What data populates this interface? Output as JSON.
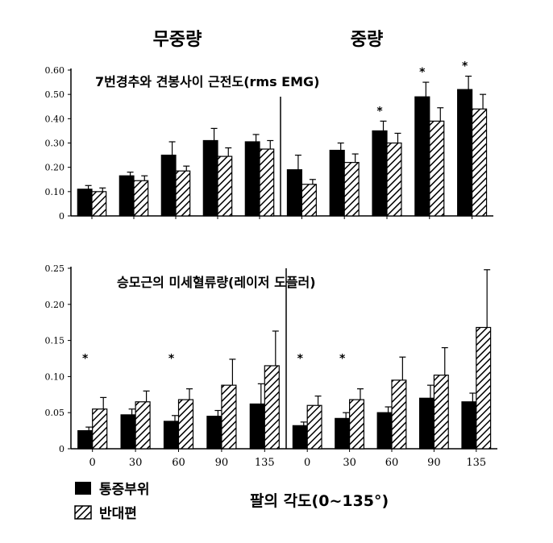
{
  "column_titles": [
    "무중량",
    "중량"
  ],
  "legend": [
    {
      "label": "통증부위",
      "fill": "solid"
    },
    {
      "label": "반대편",
      "fill": "hatch"
    }
  ],
  "xlabel": "팔의 각도(0~135°)",
  "colors": {
    "solid": "#000000",
    "hatch_bg": "#ffffff",
    "line": "#000000"
  },
  "chart_data": [
    {
      "type": "bar",
      "title": "7번경추와 견봉사이 근전도(rms EMG)",
      "categories": [
        "0",
        "30",
        "60",
        "90",
        "135"
      ],
      "ylim": [
        0,
        0.6
      ],
      "yticks": [
        "0",
        "0.10",
        "0.20",
        "0.30",
        "0.40",
        "0.50",
        "0.60"
      ],
      "show_x_tick_labels": false,
      "panels": [
        {
          "name": "무중량",
          "series": [
            {
              "name": "통증부위",
              "values": [
                0.11,
                0.165,
                0.25,
                0.31,
                0.305
              ],
              "errors": [
                0.015,
                0.015,
                0.055,
                0.05,
                0.03
              ]
            },
            {
              "name": "반대편",
              "values": [
                0.1,
                0.145,
                0.185,
                0.245,
                0.275
              ],
              "errors": [
                0.015,
                0.02,
                0.02,
                0.035,
                0.035
              ]
            }
          ],
          "significant": [
            false,
            false,
            false,
            false,
            false
          ]
        },
        {
          "name": "중량",
          "series": [
            {
              "name": "통증부위",
              "values": [
                0.19,
                0.27,
                0.35,
                0.49,
                0.52
              ],
              "errors": [
                0.06,
                0.03,
                0.04,
                0.06,
                0.055
              ]
            },
            {
              "name": "반대편",
              "values": [
                0.13,
                0.22,
                0.3,
                0.39,
                0.44
              ],
              "errors": [
                0.02,
                0.035,
                0.04,
                0.055,
                0.06
              ]
            }
          ],
          "significant": [
            false,
            false,
            true,
            true,
            true
          ]
        }
      ]
    },
    {
      "type": "bar",
      "title": "승모근의 미세혈류량(레이저 도플러)",
      "categories": [
        "0",
        "30",
        "60",
        "90",
        "135"
      ],
      "ylim": [
        0,
        0.25
      ],
      "yticks": [
        "0",
        "0.05",
        "0.10",
        "0.15",
        "0.20",
        "0.25"
      ],
      "show_x_tick_labels": true,
      "panels": [
        {
          "name": "무중량",
          "series": [
            {
              "name": "통증부위",
              "values": [
                0.025,
                0.047,
                0.038,
                0.045,
                0.062
              ],
              "errors": [
                0.005,
                0.008,
                0.008,
                0.008,
                0.028
              ]
            },
            {
              "name": "반대편",
              "values": [
                0.055,
                0.065,
                0.068,
                0.088,
                0.115
              ],
              "errors": [
                0.016,
                0.015,
                0.015,
                0.036,
                0.048
              ]
            }
          ],
          "significant": [
            true,
            false,
            true,
            false,
            false
          ]
        },
        {
          "name": "중량",
          "series": [
            {
              "name": "통증부위",
              "values": [
                0.032,
                0.042,
                0.05,
                0.07,
                0.065
              ],
              "errors": [
                0.005,
                0.008,
                0.008,
                0.018,
                0.012
              ]
            },
            {
              "name": "반대편",
              "values": [
                0.06,
                0.068,
                0.095,
                0.102,
                0.168
              ],
              "errors": [
                0.013,
                0.015,
                0.032,
                0.038,
                0.08
              ]
            }
          ],
          "significant": [
            true,
            true,
            false,
            false,
            false
          ]
        }
      ]
    }
  ]
}
